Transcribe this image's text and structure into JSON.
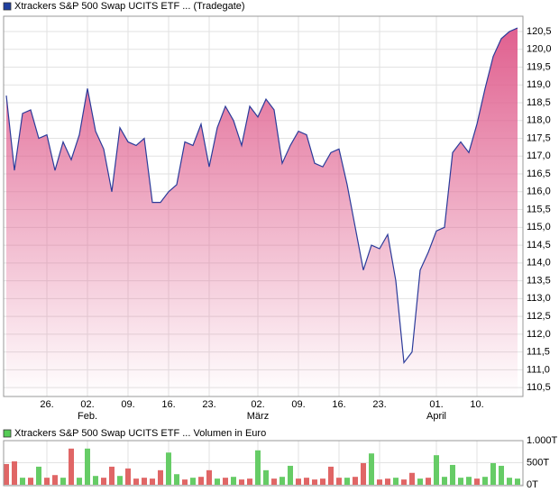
{
  "chart_data": [
    {
      "type": "area",
      "legend": "Xtrackers S&P 500 Swap UCITS ETF ... (Tradegate)",
      "legend_color": "#1f3f9f",
      "color": "#2b3b9a",
      "fill": "#e0608f",
      "grid": true,
      "values": [
        118.7,
        116.6,
        118.2,
        118.3,
        117.5,
        117.6,
        116.6,
        117.4,
        116.9,
        117.6,
        118.9,
        117.7,
        117.2,
        116.0,
        117.8,
        117.4,
        117.3,
        117.5,
        115.7,
        115.7,
        116.0,
        116.2,
        117.4,
        117.3,
        117.9,
        116.7,
        117.8,
        118.4,
        118.0,
        117.3,
        118.4,
        118.1,
        118.6,
        118.3,
        116.8,
        117.3,
        117.7,
        117.6,
        116.8,
        116.7,
        117.1,
        117.2,
        116.2,
        115.0,
        113.8,
        114.5,
        114.4,
        114.8,
        113.5,
        111.2,
        111.5,
        113.8,
        114.3,
        114.9,
        115.0,
        117.1,
        117.4,
        117.1,
        117.9,
        118.9,
        119.8,
        120.3,
        120.5,
        120.6
      ],
      "ylim": [
        110.25,
        120.93
      ],
      "yticks": [
        {
          "value": 110.5,
          "label": "110,5"
        },
        {
          "value": 111,
          "label": "111,0"
        },
        {
          "value": 111.5,
          "label": "111,5"
        },
        {
          "value": 112,
          "label": "112,0"
        },
        {
          "value": 112.5,
          "label": "112,5"
        },
        {
          "value": 113,
          "label": "113,0"
        },
        {
          "value": 113.5,
          "label": "113,5"
        },
        {
          "value": 114,
          "label": "114,0"
        },
        {
          "value": 114.5,
          "label": "114,5"
        },
        {
          "value": 115,
          "label": "115,0"
        },
        {
          "value": 115.5,
          "label": "115,5"
        },
        {
          "value": 116,
          "label": "116,0"
        },
        {
          "value": 116.5,
          "label": "116,5"
        },
        {
          "value": 117,
          "label": "117,0"
        },
        {
          "value": 117.5,
          "label": "117,5"
        },
        {
          "value": 118,
          "label": "118,0"
        },
        {
          "value": 118.5,
          "label": "118,5"
        },
        {
          "value": 119,
          "label": "119,0"
        },
        {
          "value": 119.5,
          "label": "119,5"
        },
        {
          "value": 120,
          "label": "120,0"
        },
        {
          "value": 120.5,
          "label": "120,5"
        }
      ],
      "xticks": [
        {
          "value": 5,
          "label": "26."
        },
        {
          "value": 10,
          "label": "02."
        },
        {
          "value": 15,
          "label": "09."
        },
        {
          "value": 20,
          "label": "16."
        },
        {
          "value": 25,
          "label": "23."
        },
        {
          "value": 31,
          "label": "02."
        },
        {
          "value": 36,
          "label": "09."
        },
        {
          "value": 41,
          "label": "16."
        },
        {
          "value": 46,
          "label": "23."
        },
        {
          "value": 53,
          "label": "01."
        },
        {
          "value": 58,
          "label": "10."
        }
      ],
      "months": [
        {
          "value": 10,
          "label": "Feb."
        },
        {
          "value": 31,
          "label": "März"
        },
        {
          "value": 53,
          "label": "April"
        }
      ]
    },
    {
      "type": "bar",
      "legend": "Xtrackers S&P 500 Swap UCITS ETF ... Volumen in Euro",
      "legend_color": "#55cc55",
      "grid": true,
      "values": [
        470000,
        530000,
        160000,
        160000,
        410000,
        160000,
        220000,
        160000,
        820000,
        160000,
        820000,
        200000,
        160000,
        410000,
        200000,
        370000,
        140000,
        160000,
        140000,
        330000,
        730000,
        240000,
        120000,
        160000,
        180000,
        330000,
        140000,
        160000,
        180000,
        120000,
        140000,
        780000,
        330000,
        140000,
        180000,
        430000,
        140000,
        160000,
        120000,
        140000,
        410000,
        160000,
        160000,
        180000,
        490000,
        710000,
        120000,
        140000,
        160000,
        120000,
        270000,
        140000,
        160000,
        670000,
        180000,
        450000,
        160000,
        180000,
        140000,
        180000,
        490000,
        430000,
        160000,
        140000
      ],
      "colors": [
        "#e06666",
        "#e06666",
        "#66cc66",
        "#e06666",
        "#66cc66",
        "#e06666",
        "#e06666",
        "#66cc66",
        "#e06666",
        "#66cc66",
        "#66cc66",
        "#66cc66",
        "#e06666",
        "#e06666",
        "#66cc66",
        "#e06666",
        "#e06666",
        "#e06666",
        "#e06666",
        "#e06666",
        "#66cc66",
        "#66cc66",
        "#e06666",
        "#66cc66",
        "#e06666",
        "#e06666",
        "#66cc66",
        "#e06666",
        "#66cc66",
        "#e06666",
        "#e06666",
        "#66cc66",
        "#66cc66",
        "#e06666",
        "#66cc66",
        "#66cc66",
        "#e06666",
        "#e06666",
        "#e06666",
        "#e06666",
        "#e06666",
        "#e06666",
        "#66cc66",
        "#e06666",
        "#e06666",
        "#66cc66",
        "#e06666",
        "#e06666",
        "#66cc66",
        "#e06666",
        "#e06666",
        "#66cc66",
        "#e06666",
        "#66cc66",
        "#66cc66",
        "#66cc66",
        "#66cc66",
        "#66cc66",
        "#e06666",
        "#66cc66",
        "#66cc66",
        "#66cc66",
        "#66cc66",
        "#66cc66"
      ],
      "ylim": [
        0,
        1000000
      ],
      "yticks": [
        {
          "value": 0,
          "label": "0T"
        },
        {
          "value": 500000,
          "label": "500T"
        },
        {
          "value": 1000000,
          "label": "1.000T"
        }
      ]
    }
  ]
}
